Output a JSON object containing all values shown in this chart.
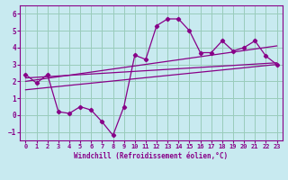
{
  "xlabel": "Windchill (Refroidissement éolien,°C)",
  "xlim": [
    -0.5,
    23.5
  ],
  "ylim": [
    -1.5,
    6.5
  ],
  "xticks": [
    0,
    1,
    2,
    3,
    4,
    5,
    6,
    7,
    8,
    9,
    10,
    11,
    12,
    13,
    14,
    15,
    16,
    17,
    18,
    19,
    20,
    21,
    22,
    23
  ],
  "yticks": [
    -1,
    0,
    1,
    2,
    3,
    4,
    5,
    6
  ],
  "bg_color": "#c8eaf0",
  "line_color": "#880088",
  "grid_color": "#99ccbb",
  "line1_x": [
    0,
    1,
    2,
    3,
    4,
    5,
    6,
    7,
    8,
    9,
    10,
    11,
    12,
    13,
    14,
    15,
    16,
    17,
    18,
    19,
    20,
    21,
    22,
    23
  ],
  "line1_y": [
    2.4,
    1.9,
    2.4,
    0.2,
    0.1,
    0.5,
    0.3,
    -0.4,
    -1.2,
    0.5,
    3.55,
    3.3,
    5.3,
    5.7,
    5.7,
    5.0,
    3.7,
    3.7,
    4.4,
    3.8,
    4.0,
    4.4,
    3.5,
    3.0
  ],
  "line2_x": [
    0,
    23
  ],
  "line2_y": [
    2.2,
    3.1
  ],
  "line3_x": [
    0,
    23
  ],
  "line3_y": [
    2.0,
    4.1
  ],
  "line4_x": [
    0,
    23
  ],
  "line4_y": [
    1.5,
    3.0
  ]
}
